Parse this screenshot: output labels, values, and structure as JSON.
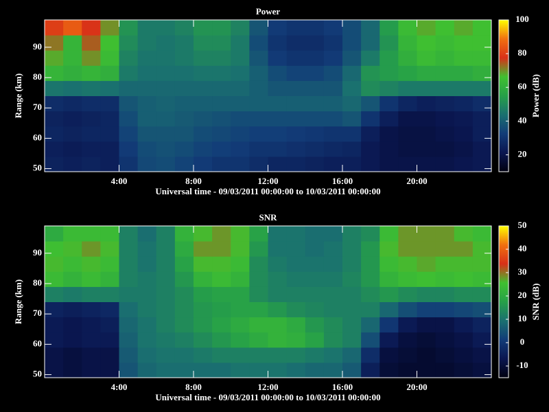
{
  "chart_data": [
    {
      "type": "heatmap",
      "title": "Power",
      "xlabel": "Universal time - 09/03/2011 00:00:00 to 10/03/2011 00:00:00",
      "ylabel": "Range (km)",
      "zlabel": "Power (dB)",
      "x_bins": [
        0,
        1,
        2,
        3,
        4,
        5,
        6,
        7,
        8,
        9,
        10,
        11,
        12,
        13,
        14,
        15,
        16,
        17,
        18,
        19,
        20,
        21,
        22,
        23,
        24
      ],
      "y_bins": [
        49,
        54,
        59,
        64,
        69,
        74,
        79,
        84,
        89,
        94,
        99
      ],
      "values": [
        [
          25,
          24,
          25,
          24,
          30,
          35,
          36,
          34,
          32,
          30,
          30,
          28,
          26,
          26,
          25,
          24,
          24,
          22,
          20,
          20,
          20,
          20,
          21,
          22
        ],
        [
          24,
          23,
          24,
          24,
          32,
          36,
          37,
          36,
          34,
          33,
          32,
          30,
          30,
          29,
          28,
          27,
          26,
          22,
          20,
          19,
          19,
          19,
          20,
          22
        ],
        [
          26,
          25,
          26,
          26,
          34,
          38,
          38,
          38,
          36,
          35,
          34,
          33,
          33,
          32,
          31,
          30,
          30,
          24,
          20,
          19,
          19,
          20,
          21,
          24
        ],
        [
          25,
          24,
          25,
          26,
          36,
          40,
          40,
          39,
          38,
          37,
          36,
          36,
          36,
          36,
          36,
          36,
          38,
          30,
          24,
          20,
          20,
          21,
          22,
          24
        ],
        [
          28,
          27,
          28,
          28,
          38,
          40,
          41,
          40,
          40,
          40,
          40,
          40,
          40,
          40,
          40,
          40,
          42,
          38,
          30,
          26,
          24,
          25,
          26,
          28
        ],
        [
          45,
          44,
          45,
          44,
          42,
          42,
          42,
          42,
          42,
          42,
          42,
          40,
          38,
          38,
          38,
          38,
          44,
          50,
          48,
          46,
          46,
          46,
          46,
          46
        ],
        [
          62,
          60,
          62,
          60,
          46,
          44,
          44,
          44,
          45,
          45,
          44,
          40,
          36,
          34,
          34,
          36,
          42,
          52,
          54,
          56,
          58,
          58,
          58,
          60
        ],
        [
          68,
          62,
          70,
          64,
          48,
          45,
          45,
          46,
          48,
          48,
          46,
          38,
          32,
          30,
          30,
          32,
          38,
          46,
          54,
          60,
          64,
          62,
          64,
          64
        ],
        [
          72,
          62,
          74,
          66,
          50,
          46,
          45,
          46,
          50,
          50,
          46,
          36,
          30,
          28,
          28,
          30,
          36,
          42,
          52,
          62,
          66,
          64,
          66,
          66
        ],
        [
          80,
          85,
          78,
          70,
          52,
          46,
          46,
          48,
          52,
          52,
          48,
          38,
          32,
          30,
          30,
          32,
          36,
          42,
          54,
          64,
          68,
          66,
          68,
          66
        ]
      ],
      "xlim": [
        0,
        24
      ],
      "xticks": [
        {
          "value": 4,
          "label": "4:00"
        },
        {
          "value": 8,
          "label": "8:00"
        },
        {
          "value": 12,
          "label": "12:00"
        },
        {
          "value": 16,
          "label": "16:00"
        },
        {
          "value": 20,
          "label": "20:00"
        }
      ],
      "ylim": [
        49,
        99
      ],
      "yticks": [
        50,
        60,
        70,
        80,
        90
      ],
      "zlim": [
        10,
        100
      ],
      "zticks": [
        20,
        40,
        60,
        80,
        100
      ],
      "colormap": [
        "#000010",
        "#0a1650",
        "#123c78",
        "#1a7070",
        "#26a048",
        "#40c030",
        "#d83018",
        "#f07010",
        "#ffff00"
      ]
    },
    {
      "type": "heatmap",
      "title": "SNR",
      "xlabel": "Universal time - 09/03/2011 00:00:00 to 10/03/2011 00:00:00",
      "ylabel": "Range (km)",
      "zlabel": "SNR (dB)",
      "x_bins": [
        0,
        1,
        2,
        3,
        4,
        5,
        6,
        7,
        8,
        9,
        10,
        11,
        12,
        13,
        14,
        15,
        16,
        17,
        18,
        19,
        20,
        21,
        22,
        23,
        24
      ],
      "y_bins": [
        49,
        54,
        59,
        64,
        69,
        74,
        79,
        84,
        89,
        94,
        99
      ],
      "values": [
        [
          -8,
          -9,
          -8,
          -8,
          5,
          8,
          9,
          9,
          9,
          9,
          10,
          10,
          10,
          9,
          8,
          8,
          6,
          -5,
          -10,
          -11,
          -11,
          -11,
          -10,
          -9
        ],
        [
          -8,
          -9,
          -8,
          -8,
          6,
          9,
          10,
          10,
          11,
          12,
          12,
          12,
          12,
          12,
          11,
          10,
          8,
          -2,
          -9,
          -10,
          -11,
          -10,
          -9,
          -8
        ],
        [
          -6,
          -7,
          -6,
          -6,
          7,
          10,
          11,
          12,
          14,
          16,
          18,
          20,
          22,
          21,
          18,
          14,
          12,
          4,
          -6,
          -9,
          -10,
          -9,
          -8,
          -6
        ],
        [
          -6,
          -7,
          -6,
          -5,
          8,
          10,
          12,
          14,
          16,
          18,
          20,
          22,
          22,
          20,
          16,
          14,
          12,
          8,
          0,
          -6,
          -8,
          -8,
          -6,
          -4
        ],
        [
          -4,
          -5,
          -4,
          -3,
          9,
          11,
          12,
          14,
          16,
          17,
          18,
          18,
          16,
          14,
          13,
          12,
          12,
          12,
          8,
          4,
          2,
          2,
          3,
          4
        ],
        [
          12,
          11,
          12,
          12,
          11,
          11,
          12,
          14,
          17,
          18,
          18,
          14,
          12,
          12,
          12,
          12,
          12,
          14,
          16,
          14,
          13,
          13,
          14,
          14
        ],
        [
          24,
          22,
          24,
          22,
          12,
          11,
          12,
          16,
          22,
          24,
          22,
          14,
          12,
          11,
          11,
          11,
          13,
          16,
          22,
          24,
          25,
          24,
          25,
          24
        ],
        [
          26,
          24,
          26,
          24,
          12,
          10,
          12,
          18,
          26,
          26,
          24,
          14,
          11,
          10,
          10,
          10,
          12,
          16,
          24,
          26,
          27,
          26,
          26,
          26
        ],
        [
          25,
          26,
          28,
          26,
          12,
          10,
          12,
          20,
          28,
          28,
          26,
          16,
          10,
          10,
          9,
          10,
          12,
          16,
          26,
          28,
          28,
          28,
          28,
          26
        ],
        [
          20,
          24,
          24,
          24,
          12,
          9,
          12,
          22,
          26,
          28,
          26,
          18,
          10,
          10,
          9,
          9,
          12,
          14,
          24,
          28,
          28,
          28,
          26,
          24
        ]
      ],
      "xlim": [
        0,
        24
      ],
      "xticks": [
        {
          "value": 4,
          "label": "4:00"
        },
        {
          "value": 8,
          "label": "8:00"
        },
        {
          "value": 12,
          "label": "12:00"
        },
        {
          "value": 16,
          "label": "16:00"
        },
        {
          "value": 20,
          "label": "20:00"
        }
      ],
      "ylim": [
        49,
        99
      ],
      "yticks": [
        50,
        60,
        70,
        80,
        90
      ],
      "zlim": [
        -15,
        50
      ],
      "zticks": [
        -10,
        0,
        10,
        20,
        30,
        40,
        50
      ],
      "colormap": [
        "#000010",
        "#0a1650",
        "#123c78",
        "#1a7070",
        "#26a048",
        "#40c030",
        "#d83018",
        "#f07010",
        "#ffff00"
      ]
    }
  ]
}
